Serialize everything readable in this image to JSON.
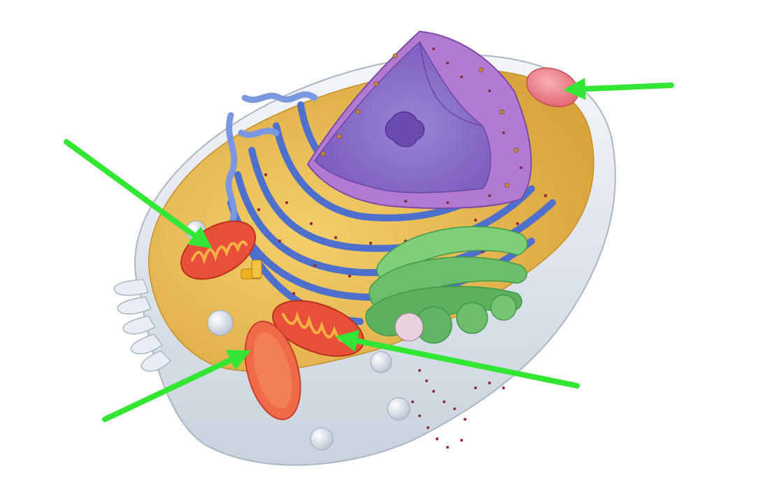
{
  "diagram": {
    "subject": "animal-cell",
    "colors": {
      "background": "#ffffff",
      "membrane": "#e6eaf0",
      "cytoplasm": "#e8b94a",
      "er": "#5d7ed6",
      "er_dark": "#3f5cb5",
      "nucleus": "#9a5cc2",
      "nucleus_inner": "#8064b8",
      "nucleolus": "#6b4bb0",
      "mitochondria": "#e8503a",
      "mito_inner": "#f59a3a",
      "golgi": "#6cbf6a",
      "golgi_dark": "#3e9a48",
      "lysosome": "#e8707a",
      "vesicle": "#dfe6ee",
      "ribosome": "#9a2a3a",
      "centriole": "#f2b21e",
      "arrow": "#33e633"
    },
    "arrows": [
      {
        "name": "arrow-to-lysosome",
        "target": "lysosome"
      },
      {
        "name": "arrow-to-mitochondrion-left",
        "target": "mitochondrion"
      },
      {
        "name": "arrow-to-mitochondrion-center",
        "target": "mitochondrion"
      },
      {
        "name": "arrow-to-mitochondrion-lower",
        "target": "mitochondrion"
      }
    ]
  }
}
